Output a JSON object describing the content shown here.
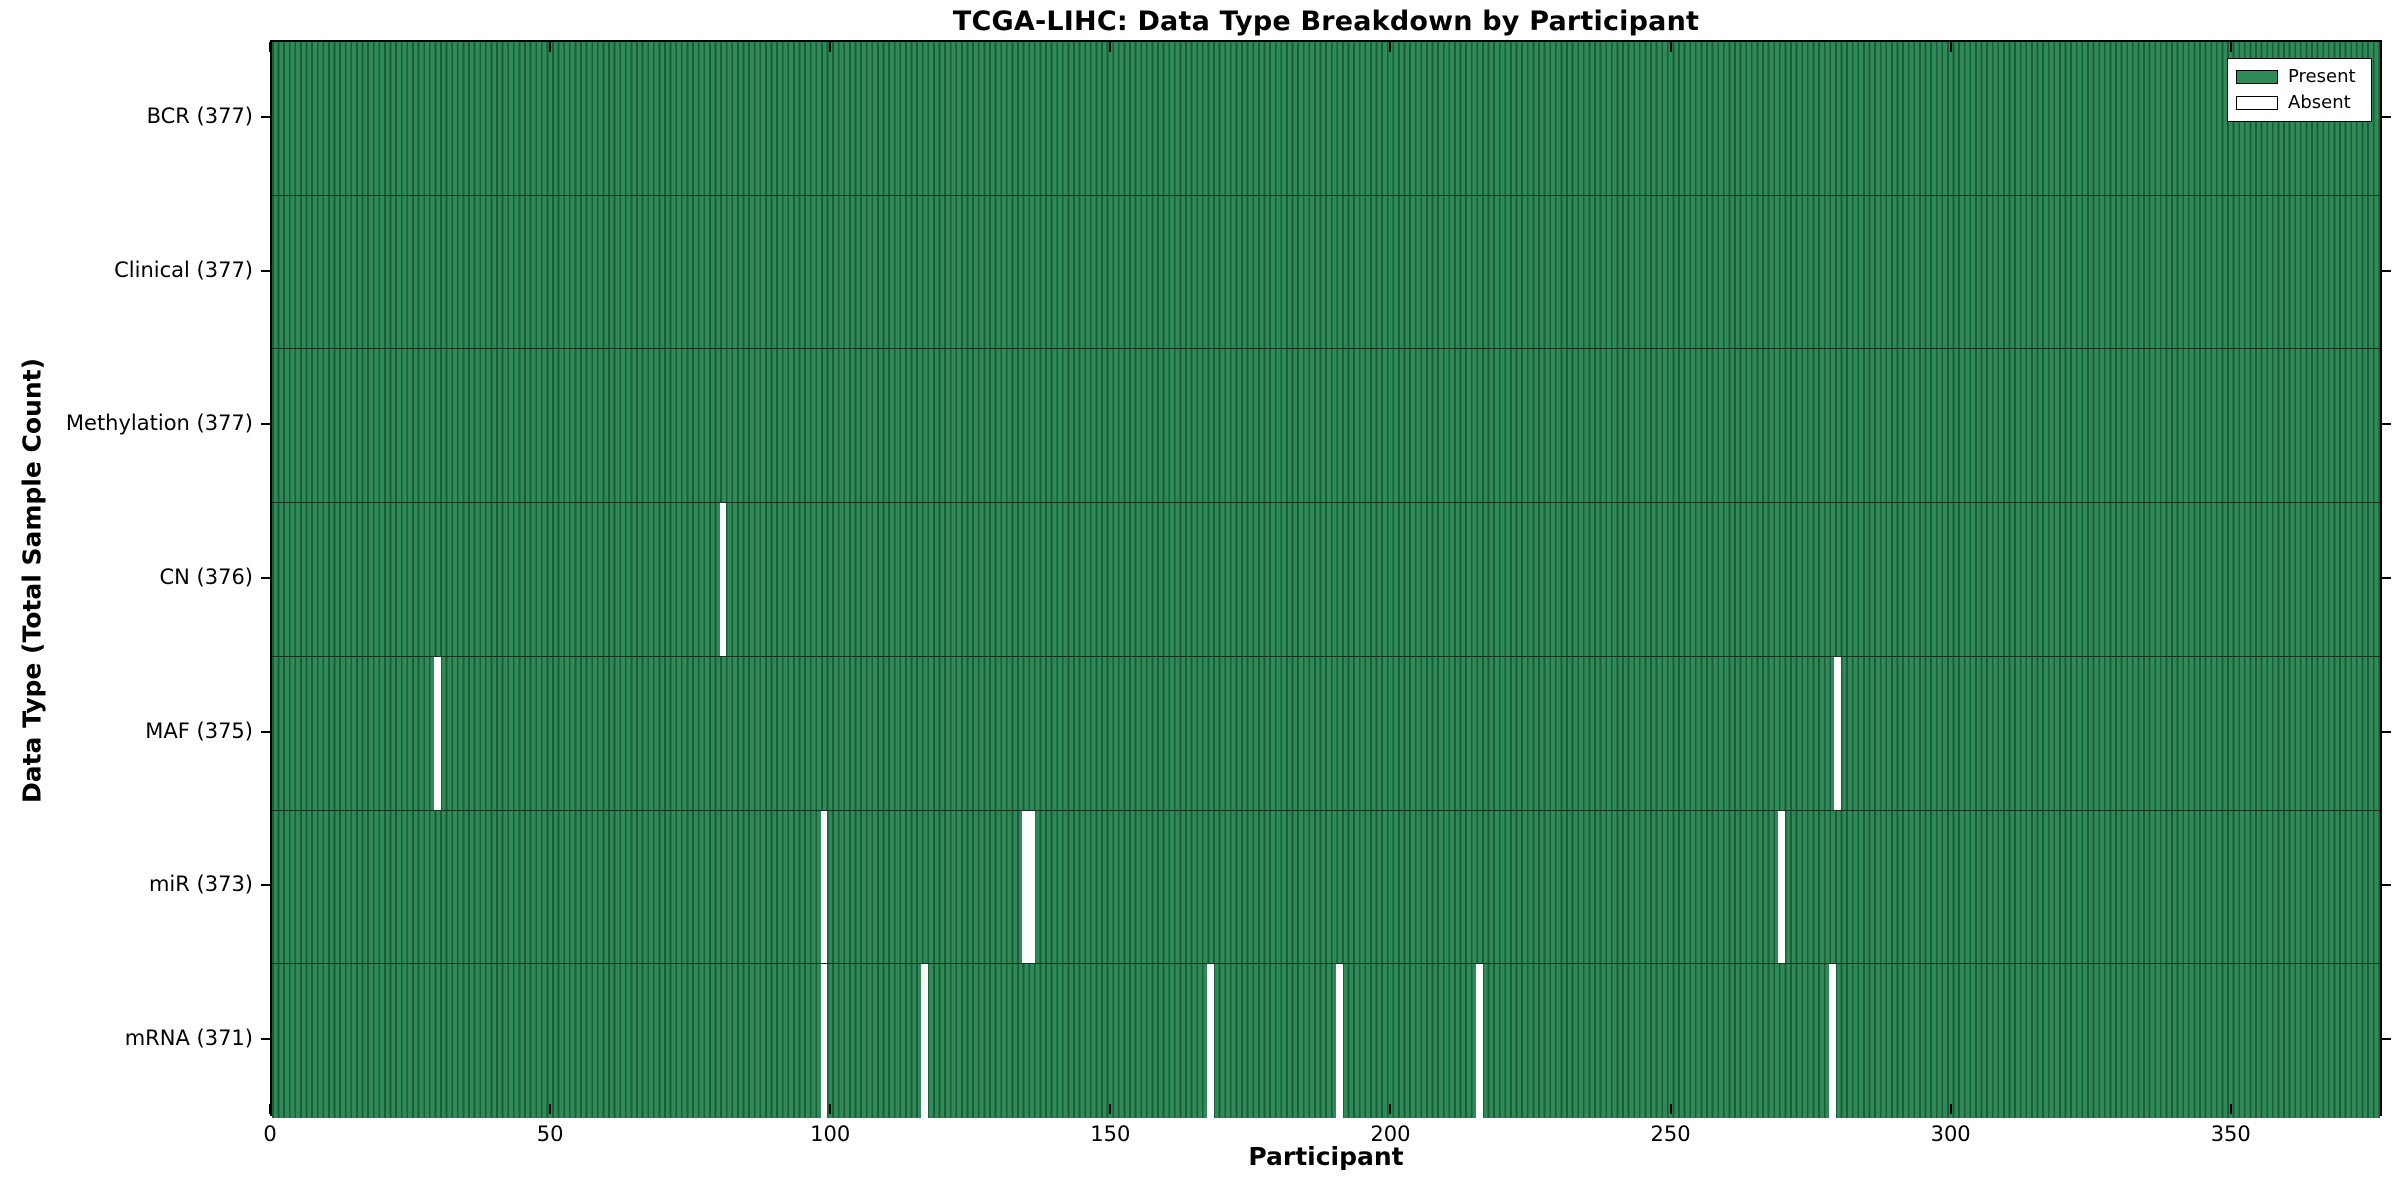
{
  "chart_data": {
    "type": "heatmap",
    "title": "TCGA-LIHC: Data Type Breakdown by Participant",
    "xlabel": "Participant",
    "ylabel": "Data Type (Total Sample Count)",
    "x_ticks": [
      0,
      50,
      100,
      150,
      200,
      250,
      300,
      350
    ],
    "xlim": [
      0,
      377
    ],
    "n_participants": 377,
    "grid": false,
    "legend_position": "upper right",
    "rows": [
      {
        "label": "BCR (377)",
        "name": "BCR",
        "present_count": 377,
        "absent_participants": []
      },
      {
        "label": "Clinical (377)",
        "name": "Clinical",
        "present_count": 377,
        "absent_participants": []
      },
      {
        "label": "Methylation (377)",
        "name": "Methylation",
        "present_count": 377,
        "absent_participants": []
      },
      {
        "label": "CN (376)",
        "name": "CN",
        "present_count": 376,
        "absent_participants": [
          80
        ]
      },
      {
        "label": "MAF (375)",
        "name": "MAF",
        "present_count": 375,
        "absent_participants": [
          29,
          279
        ]
      },
      {
        "label": "miR (373)",
        "name": "miR",
        "present_count": 373,
        "absent_participants": [
          98,
          134,
          135,
          269
        ]
      },
      {
        "label": "mRNA (371)",
        "name": "mRNA",
        "present_count": 371,
        "absent_participants": [
          98,
          116,
          167,
          190,
          215,
          278
        ]
      }
    ],
    "legend": [
      {
        "label": "Present",
        "color": "#2e8b57"
      },
      {
        "label": "Absent",
        "color": "#ffffff"
      }
    ],
    "colors": {
      "present": "#2e8b57",
      "present_edge": "#1c5c3a",
      "absent": "#ffffff",
      "axis": "#000000"
    }
  }
}
